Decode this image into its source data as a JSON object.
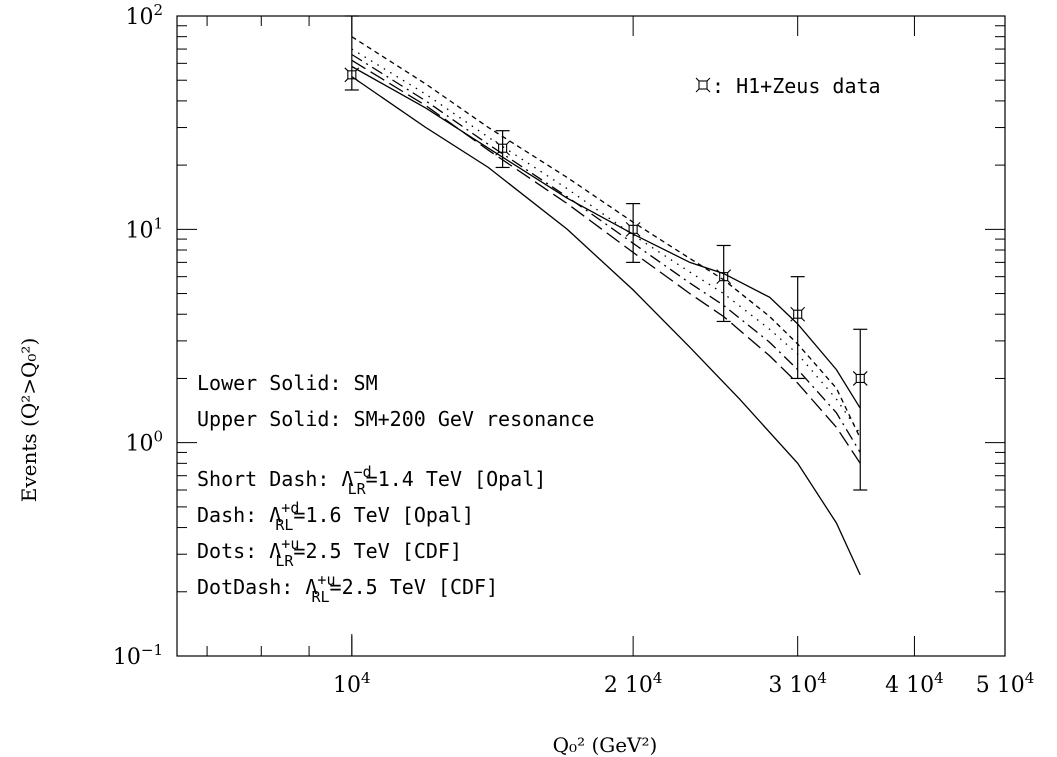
{
  "chart_data": {
    "type": "line",
    "xscale": "log",
    "yscale": "log",
    "xlim": [
      6500,
      50000
    ],
    "ylim": [
      0.1,
      100
    ],
    "xlabel": "Q₀² (GeV²)",
    "ylabel": "Events (Q²>Q₀²)",
    "x_ticks": [
      {
        "value": 10000,
        "mantissa": "",
        "exp": "4"
      },
      {
        "value": 20000,
        "mantissa": "2",
        "exp": "4"
      },
      {
        "value": 30000,
        "mantissa": "3",
        "exp": "4"
      },
      {
        "value": 40000,
        "mantissa": "4",
        "exp": "4"
      },
      {
        "value": 50000,
        "mantissa": "5",
        "exp": "4"
      }
    ],
    "y_ticks": [
      {
        "value": 100,
        "exp": "2"
      },
      {
        "value": 10,
        "exp": "1"
      },
      {
        "value": 1,
        "exp": "0"
      },
      {
        "value": 0.1,
        "exp": "−1"
      }
    ],
    "tick_base": "10",
    "series": [
      {
        "style": "solid",
        "x": [
          10000,
          12000,
          14000,
          17000,
          20000,
          23000,
          26000,
          30000,
          33000,
          35000
        ],
        "values": [
          52,
          30,
          19.5,
          10,
          5.2,
          2.8,
          1.6,
          0.8,
          0.42,
          0.24
        ]
      },
      {
        "style": "solid",
        "x": [
          10000,
          12000,
          14000,
          17000,
          20000,
          23000,
          25000,
          28000,
          30000,
          33000,
          35000
        ],
        "values": [
          58,
          37,
          24,
          14,
          9.5,
          7,
          6.2,
          4.8,
          3.6,
          2.2,
          1.45
        ]
      },
      {
        "style": "shortdash",
        "x": [
          10000,
          12000,
          14000,
          17000,
          20000,
          23000,
          25000,
          28000,
          30000,
          33000,
          35000
        ],
        "values": [
          80,
          48,
          30,
          17.5,
          10.8,
          7.3,
          5.8,
          3.9,
          2.9,
          1.8,
          1.05
        ]
      },
      {
        "style": "dash",
        "x": [
          10000,
          12000,
          14000,
          17000,
          20000,
          23000,
          25000,
          28000,
          30000,
          33000,
          35000
        ],
        "values": [
          62,
          38,
          23.5,
          13.2,
          7.8,
          5.0,
          3.9,
          2.55,
          1.9,
          1.18,
          0.8
        ]
      },
      {
        "style": "dots",
        "x": [
          10000,
          12000,
          14000,
          17000,
          20000,
          23000,
          25000,
          28000,
          30000,
          33000,
          35000
        ],
        "values": [
          70,
          43,
          27,
          15.5,
          9.4,
          6.3,
          5.0,
          3.4,
          2.6,
          1.6,
          1.1
        ]
      },
      {
        "style": "dotdash",
        "x": [
          10000,
          12000,
          14000,
          17000,
          20000,
          23000,
          25000,
          28000,
          30000,
          33000,
          35000
        ],
        "values": [
          66,
          40,
          25,
          14.2,
          8.6,
          5.6,
          4.4,
          2.95,
          2.2,
          1.38,
          0.9
        ]
      }
    ],
    "data_points": [
      {
        "x": 10000,
        "y": 53,
        "ylow": 45,
        "yhigh": 100
      },
      {
        "x": 14500,
        "y": 24,
        "ylow": 19.5,
        "yhigh": 29
      },
      {
        "x": 20000,
        "y": 10,
        "ylow": 7,
        "yhigh": 13.2
      },
      {
        "x": 25000,
        "y": 6,
        "ylow": 3.7,
        "yhigh": 8.4
      },
      {
        "x": 30000,
        "y": 4,
        "ylow": 2.0,
        "yhigh": 6.0
      },
      {
        "x": 35000,
        "y": 2,
        "ylow": 0.6,
        "yhigh": 3.4
      }
    ],
    "marker_symbol": "⌑",
    "legend_data_label": ": H1+Zeus data",
    "legend_lines": [
      {
        "pre": "Lower Solid: SM"
      },
      {
        "pre": "Upper Solid: SM+200 GeV resonance"
      },
      {
        "pre": "Short Dash: Λ",
        "sup": "−d",
        "sub": "LR",
        "post": "=1.4 TeV [Opal]"
      },
      {
        "pre": "Dash: Λ",
        "sup": "+d",
        "sub": "RL",
        "post": "=1.6 TeV [Opal]"
      },
      {
        "pre": "Dots: Λ",
        "sup": "+u",
        "sub": "LR",
        "post": "=2.5 TeV [CDF]"
      },
      {
        "pre": "DotDash: Λ",
        "sup": "+u",
        "sub": "RL",
        "post": "=2.5 TeV [CDF]"
      }
    ]
  }
}
